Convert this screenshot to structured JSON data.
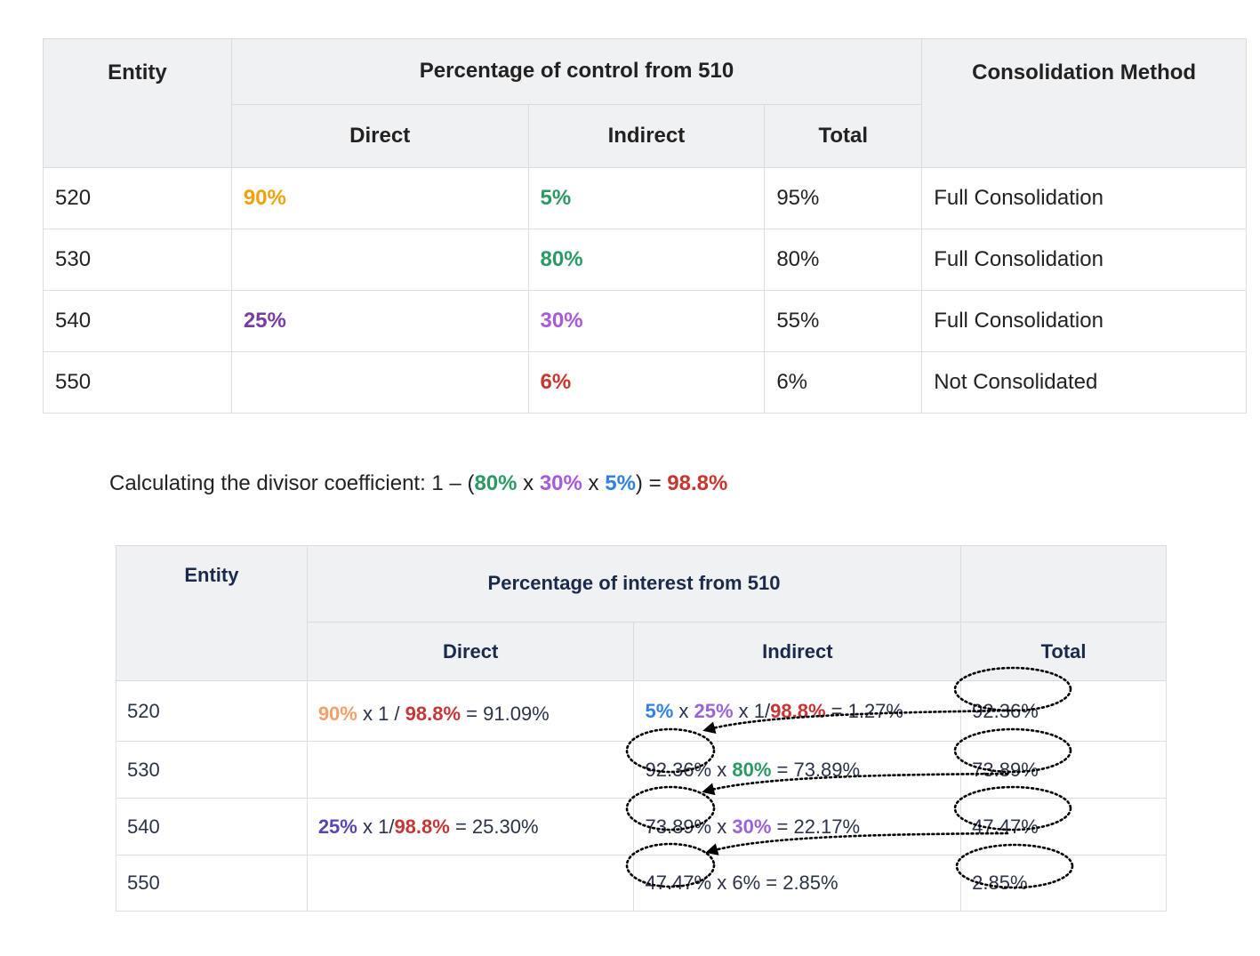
{
  "colors": {
    "header_bg": "#f0f1f3",
    "orange": "#f0a10b",
    "green": "#2a9a63",
    "purple": "#7a3ba6",
    "violet": "#a85ad8",
    "blue": "#2f80e8",
    "red": "#c7372f"
  },
  "control_table": {
    "headers": {
      "entity": "Entity",
      "group": "Percentage of control from 510",
      "direct": "Direct",
      "indirect": "Indirect",
      "total": "Total",
      "method": "Consolidation Method"
    },
    "rows": [
      {
        "entity": "520",
        "direct": "90%",
        "indirect": "5%",
        "total": "95%",
        "method": "Full Consolidation"
      },
      {
        "entity": "530",
        "direct": "",
        "indirect": "80%",
        "total": "80%",
        "method": "Full Consolidation"
      },
      {
        "entity": "540",
        "direct": "25%",
        "indirect": "30%",
        "total": "55%",
        "method": "Full Consolidation"
      },
      {
        "entity": "550",
        "direct": "",
        "indirect": "6%",
        "total": "6%",
        "method": "Not Consolidated"
      }
    ]
  },
  "formula": {
    "prefix": "Calculating the divisor coefficient: 1 – (",
    "a": "80%",
    "x1": " x ",
    "b": "30%",
    "x2": " x ",
    "c": "5%",
    "eq": ") = ",
    "result": "98.8%"
  },
  "interest_table": {
    "headers": {
      "entity": "Entity",
      "group": "Percentage of interest from 510",
      "direct": "Direct",
      "indirect": "Indirect",
      "total": "Total"
    },
    "rows": [
      {
        "entity": "520",
        "direct": {
          "a": "90%",
          "mid": " x 1 / ",
          "b": "98.8%",
          "res": " = 91.09%"
        },
        "indirect": {
          "a": "5%",
          "x": " x ",
          "b": "25%",
          "mid": " x 1/",
          "c": "98.8%",
          "res": " = 1.27%"
        },
        "total": "92.36%"
      },
      {
        "entity": "530",
        "indirect": {
          "a": "92.36%",
          "x": " x ",
          "b": "80%",
          "res": " = 73.89%"
        },
        "total": "73.89%"
      },
      {
        "entity": "540",
        "direct": {
          "a": "25%",
          "mid": " x 1/",
          "b": "98.8%",
          "res": " = 25.30%"
        },
        "indirect": {
          "a": "73.89%",
          "x": " x ",
          "b": "30%",
          "res": " = 22.17%"
        },
        "total": "47.47%"
      },
      {
        "entity": "550",
        "indirect": {
          "a": "47.47%",
          "x": " x ",
          "b": "6%",
          "res": " = 2.85%"
        },
        "total": "2.85%"
      }
    ]
  }
}
